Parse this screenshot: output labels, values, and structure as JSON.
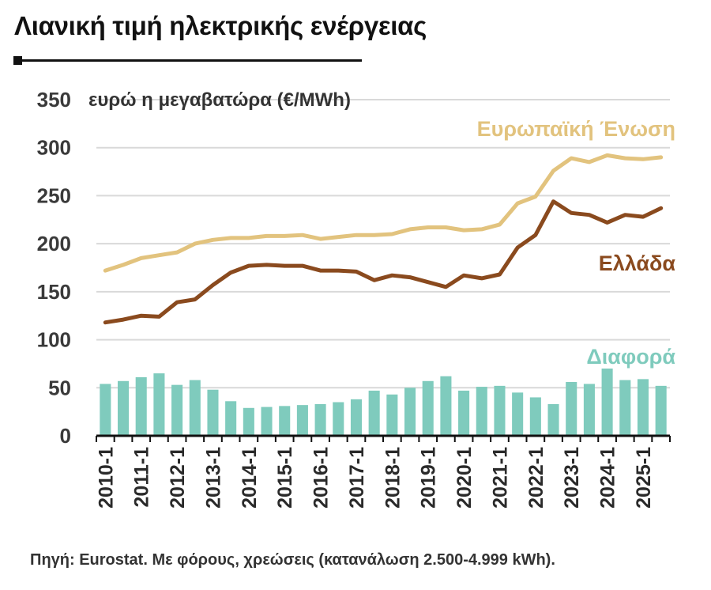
{
  "header": {
    "title": "Λιανική τιμή ηλεκτρικής ενέργειας"
  },
  "footer": {
    "source": "Πηγή: Eurostat. Με φόρους, χρεώσεις (κατανάλωση 2.500-4.999 kWh)."
  },
  "colors": {
    "eu": "#e2c37e",
    "greece": "#8a4a1e",
    "difference": "#7fcbbd",
    "grid": "#d9d9d9",
    "axis": "#111111"
  },
  "chart_data": {
    "type": "line",
    "title": "Λιανική τιμή ηλεκτρικής ενέργειας",
    "ylabel": "ευρώ η μεγαβατώρα (€/MWh)",
    "ylim": [
      0,
      350
    ],
    "yticks": [
      0,
      50,
      100,
      150,
      200,
      250,
      300,
      350
    ],
    "grid": true,
    "xtick_labels": [
      "2010-1",
      "2011-1",
      "2012-1",
      "2013-1",
      "2014-1",
      "2015-1",
      "2016-1",
      "2017-1",
      "2018-1",
      "2019-1",
      "2020-1",
      "2021-1",
      "2022-1",
      "2023-1",
      "2024-1",
      "2025-1"
    ],
    "x": [
      "2010-1",
      "2010-2",
      "2011-1",
      "2011-2",
      "2012-1",
      "2012-2",
      "2013-1",
      "2013-2",
      "2014-1",
      "2014-2",
      "2015-1",
      "2015-2",
      "2016-1",
      "2016-2",
      "2017-1",
      "2017-2",
      "2018-1",
      "2018-2",
      "2019-1",
      "2019-2",
      "2020-1",
      "2020-2",
      "2021-1",
      "2021-2",
      "2022-1",
      "2022-2",
      "2023-1",
      "2023-2",
      "2024-1",
      "2024-2",
      "2025-1",
      "2025-2"
    ],
    "series": [
      {
        "name": "Ευρωπαϊκή Ένωση",
        "type": "line",
        "values": [
          172,
          178,
          185,
          188,
          191,
          200,
          204,
          206,
          206,
          208,
          208,
          209,
          205,
          207,
          209,
          209,
          210,
          215,
          217,
          217,
          214,
          215,
          220,
          242,
          249,
          276,
          289,
          285,
          292,
          289,
          288,
          290
        ]
      },
      {
        "name": "Ελλάδα",
        "type": "line",
        "values": [
          118,
          121,
          125,
          124,
          139,
          142,
          157,
          170,
          177,
          178,
          177,
          177,
          172,
          172,
          171,
          162,
          167,
          165,
          160,
          155,
          167,
          164,
          168,
          196,
          209,
          244,
          232,
          230,
          222,
          230,
          228,
          237
        ]
      },
      {
        "name": "Διαφορά",
        "type": "bar",
        "values": [
          54,
          57,
          61,
          65,
          53,
          58,
          48,
          36,
          29,
          30,
          31,
          32,
          33,
          35,
          38,
          47,
          43,
          50,
          57,
          62,
          47,
          51,
          52,
          45,
          40,
          33,
          56,
          54,
          70,
          58,
          59,
          52
        ]
      }
    ]
  }
}
